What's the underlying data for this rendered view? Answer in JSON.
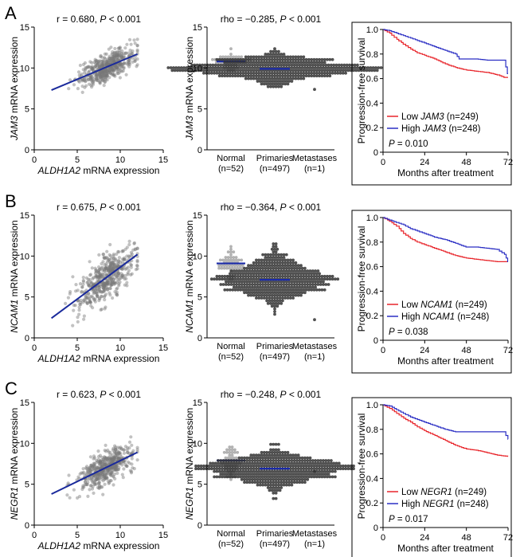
{
  "colors": {
    "low": "#e8242a",
    "high": "#2b2fc4",
    "fit": "#1a2a9c",
    "point": "#777777",
    "median": "#1a2aa8"
  },
  "rows": [
    {
      "letter": "A",
      "gene": "JAM3",
      "scatter": {
        "r_prefix": "r = 0.680, ",
        "p_italic": "P",
        "p_suffix": " < 0.001",
        "ylabel_italic": "JAM3",
        "ylabel_rest": " mRNA expression",
        "xlabel_italic": "ALDH1A2",
        "xlabel_rest": " mRNA expression"
      },
      "beeswarm": {
        "rho_prefix": "rho = −0.285, ",
        "p_italic": "P",
        "p_suffix": " < 0.001",
        "ylabel_italic": "JAM3",
        "ylabel_rest": " mRNA expression"
      },
      "km": {
        "low_prefix": "Low ",
        "low_gene": "JAM3",
        "low_n": " (n=249)",
        "high_prefix": "High ",
        "high_gene": "JAM3",
        "high_n": " (n=248)",
        "p_italic": "P",
        "p_text": " = 0.010"
      }
    },
    {
      "letter": "B",
      "gene": "NCAM1",
      "scatter": {
        "r_prefix": "r = 0.675, ",
        "p_italic": "P",
        "p_suffix": " < 0.001",
        "ylabel_italic": "NCAM1",
        "ylabel_rest": " mRNA expression",
        "xlabel_italic": "ALDH1A2",
        "xlabel_rest": " mRNA expression"
      },
      "beeswarm": {
        "rho_prefix": "rho = −0.364, ",
        "p_italic": "P",
        "p_suffix": " < 0.001",
        "ylabel_italic": "NCAM1",
        "ylabel_rest": " mRNA expression"
      },
      "km": {
        "low_prefix": "Low ",
        "low_gene": "NCAM1",
        "low_n": " (n=249)",
        "high_prefix": "High ",
        "high_gene": "NCAM1",
        "high_n": " (n=248)",
        "p_italic": "P",
        "p_text": " = 0.038"
      }
    },
    {
      "letter": "C",
      "gene": "NEGR1",
      "scatter": {
        "r_prefix": "r = 0.623, ",
        "p_italic": "P",
        "p_suffix": " < 0.001",
        "ylabel_italic": "NEGR1",
        "ylabel_rest": " mRNA expression",
        "xlabel_italic": "ALDH1A2",
        "xlabel_rest": " mRNA expression"
      },
      "beeswarm": {
        "rho_prefix": "rho = −0.248, ",
        "p_italic": "P",
        "p_suffix": " < 0.001",
        "ylabel_italic": "NEGR1",
        "ylabel_rest": " mRNA expression"
      },
      "km": {
        "low_prefix": "Low ",
        "low_gene": "NEGR1",
        "low_n": " (n=249)",
        "high_prefix": "High ",
        "high_gene": "NEGR1",
        "high_n": " (n=248)",
        "p_italic": "P",
        "p_text": " = 0.017"
      }
    }
  ],
  "chart_data": [
    {
      "type": "scatter",
      "panel": "A-scatter",
      "title": "r = 0.680, P < 0.001",
      "xlabel": "ALDH1A2 mRNA expression",
      "ylabel": "JAM3 mRNA expression",
      "xlim": [
        0,
        15
      ],
      "ylim": [
        0,
        15
      ],
      "xticks": [
        "0",
        "5",
        "10",
        "15"
      ],
      "yticks": [
        "0",
        "5",
        "10",
        "15"
      ],
      "fit_line": {
        "x": [
          2,
          12
        ],
        "y": [
          7.3,
          11.7
        ]
      },
      "point_cloud": {
        "n": 497,
        "x_mean": 8.4,
        "x_sd": 1.6,
        "x_min": 2,
        "x_max": 12,
        "slope": 0.44,
        "intercept": 6.42,
        "resid_sd": 0.8,
        "y_min": 6,
        "y_max": 13.5
      }
    },
    {
      "type": "beeswarm",
      "panel": "A-beeswarm",
      "title": "rho = −0.285, P < 0.001",
      "ylabel": "JAM3 mRNA expression",
      "ylim": [
        0,
        15
      ],
      "yticks": [
        "0",
        "5",
        "10",
        "15"
      ],
      "categories": [
        "Normal",
        "Primaries",
        "Metastases"
      ],
      "counts": [
        "(n=52)",
        "(n=497)",
        "(n=1)"
      ],
      "medians": [
        10.8,
        9.9,
        7.5
      ],
      "groups": [
        {
          "n": 52,
          "mean": 10.8,
          "sd": 0.65,
          "min": 9.2,
          "max": 13.2
        },
        {
          "n": 497,
          "mean": 9.9,
          "sd": 0.85,
          "min": 6.5,
          "max": 12.5
        },
        {
          "n": 1,
          "mean": 7.5,
          "sd": 0,
          "min": 7.5,
          "max": 7.5
        }
      ]
    },
    {
      "type": "line",
      "panel": "A-km",
      "xlabel": "Months after treatment",
      "ylabel": "Progression-free survival",
      "xlim": [
        0,
        72
      ],
      "ylim": [
        0,
        1.0
      ],
      "xticks": [
        "0",
        "24",
        "48",
        "72"
      ],
      "yticks": [
        "0",
        "0.2",
        "0.4",
        "0.6",
        "0.8",
        "1.0"
      ],
      "series": [
        {
          "name": "Low JAM3 (n=249)",
          "x": [
            0,
            4,
            8,
            12,
            16,
            20,
            24,
            30,
            36,
            42,
            48,
            54,
            60,
            66,
            70,
            72
          ],
          "y": [
            1.0,
            0.97,
            0.92,
            0.88,
            0.84,
            0.81,
            0.79,
            0.76,
            0.72,
            0.69,
            0.67,
            0.66,
            0.65,
            0.63,
            0.61,
            0.61
          ]
        },
        {
          "name": "High JAM3 (n=248)",
          "x": [
            0,
            4,
            8,
            12,
            16,
            20,
            24,
            30,
            36,
            42,
            44,
            48,
            54,
            60,
            66,
            70,
            72
          ],
          "y": [
            1.0,
            0.99,
            0.97,
            0.95,
            0.93,
            0.91,
            0.89,
            0.86,
            0.83,
            0.8,
            0.76,
            0.76,
            0.76,
            0.75,
            0.75,
            0.75,
            0.64
          ]
        }
      ]
    },
    {
      "type": "scatter",
      "panel": "B-scatter",
      "title": "r = 0.675, P < 0.001",
      "xlabel": "ALDH1A2 mRNA expression",
      "ylabel": "NCAM1 mRNA expression",
      "xlim": [
        0,
        15
      ],
      "ylim": [
        0,
        15
      ],
      "xticks": [
        "0",
        "5",
        "10",
        "15"
      ],
      "yticks": [
        "0",
        "5",
        "10",
        "15"
      ],
      "fit_line": {
        "x": [
          2,
          12
        ],
        "y": [
          2.4,
          10.2
        ]
      },
      "point_cloud": {
        "n": 497,
        "x_mean": 8.4,
        "x_sd": 1.6,
        "x_min": 2,
        "x_max": 12,
        "slope": 0.78,
        "intercept": 0.84,
        "resid_sd": 1.3,
        "y_min": 1.5,
        "y_max": 13
      }
    },
    {
      "type": "beeswarm",
      "panel": "B-beeswarm",
      "title": "rho = −0.364, P < 0.001",
      "ylabel": "NCAM1 mRNA expression",
      "ylim": [
        0,
        15
      ],
      "yticks": [
        "0",
        "5",
        "10",
        "15"
      ],
      "categories": [
        "Normal",
        "Primaries",
        "Metastases"
      ],
      "counts": [
        "(n=52)",
        "(n=497)",
        "(n=1)"
      ],
      "medians": [
        9.1,
        7.1,
        2.2
      ],
      "groups": [
        {
          "n": 52,
          "mean": 9.1,
          "sd": 1.0,
          "min": 6.8,
          "max": 12.0
        },
        {
          "n": 497,
          "mean": 7.1,
          "sd": 1.5,
          "min": 1.5,
          "max": 11.5
        },
        {
          "n": 1,
          "mean": 2.2,
          "sd": 0,
          "min": 2.2,
          "max": 2.2
        }
      ]
    },
    {
      "type": "line",
      "panel": "B-km",
      "xlabel": "Months after treatment",
      "ylabel": "Progression-free survival",
      "xlim": [
        0,
        72
      ],
      "ylim": [
        0,
        1.0
      ],
      "xticks": [
        "0",
        "24",
        "48",
        "72"
      ],
      "yticks": [
        "0",
        "0.2",
        "0.4",
        "0.6",
        "0.8",
        "1.0"
      ],
      "series": [
        {
          "name": "Low NCAM1 (n=249)",
          "x": [
            0,
            4,
            8,
            12,
            16,
            20,
            24,
            30,
            36,
            42,
            48,
            54,
            60,
            66,
            72
          ],
          "y": [
            1.0,
            0.97,
            0.93,
            0.87,
            0.83,
            0.8,
            0.78,
            0.75,
            0.72,
            0.69,
            0.67,
            0.66,
            0.65,
            0.64,
            0.64
          ]
        },
        {
          "name": "High NCAM1 (n=248)",
          "x": [
            0,
            4,
            8,
            12,
            16,
            20,
            24,
            30,
            36,
            42,
            48,
            54,
            60,
            66,
            70,
            72
          ],
          "y": [
            1.0,
            0.98,
            0.96,
            0.94,
            0.91,
            0.89,
            0.87,
            0.84,
            0.82,
            0.79,
            0.76,
            0.76,
            0.75,
            0.74,
            0.7,
            0.64
          ]
        }
      ]
    },
    {
      "type": "scatter",
      "panel": "C-scatter",
      "title": "r = 0.623, P < 0.001",
      "xlabel": "ALDH1A2 mRNA expression",
      "ylabel": "NEGR1 mRNA expression",
      "xlim": [
        0,
        15
      ],
      "ylim": [
        0,
        15
      ],
      "xticks": [
        "0",
        "5",
        "10",
        "15"
      ],
      "yticks": [
        "0",
        "5",
        "10",
        "15"
      ],
      "fit_line": {
        "x": [
          2,
          12
        ],
        "y": [
          3.8,
          8.9
        ]
      },
      "point_cloud": {
        "n": 497,
        "x_mean": 8.4,
        "x_sd": 1.6,
        "x_min": 2,
        "x_max": 12,
        "slope": 0.51,
        "intercept": 2.78,
        "resid_sd": 1.0,
        "y_min": 1.0,
        "y_max": 11
      }
    },
    {
      "type": "beeswarm",
      "panel": "C-beeswarm",
      "title": "rho = −0.248, P < 0.001",
      "ylabel": "NEGR1 mRNA expression",
      "ylim": [
        0,
        15
      ],
      "yticks": [
        "0",
        "5",
        "10",
        "15"
      ],
      "categories": [
        "Normal",
        "Primaries",
        "Metastases"
      ],
      "counts": [
        "(n=52)",
        "(n=497)",
        "(n=1)"
      ],
      "medians": [
        7.9,
        6.9,
        6.5
      ],
      "groups": [
        {
          "n": 52,
          "mean": 7.9,
          "sd": 1.0,
          "min": 5.5,
          "max": 11.0
        },
        {
          "n": 497,
          "mean": 6.9,
          "sd": 1.1,
          "min": 1.0,
          "max": 10.0
        },
        {
          "n": 1,
          "mean": 6.5,
          "sd": 0,
          "min": 6.5,
          "max": 6.5
        }
      ]
    },
    {
      "type": "line",
      "panel": "C-km",
      "xlabel": "Months after treatment",
      "ylabel": "Progression-free survival",
      "xlim": [
        0,
        72
      ],
      "ylim": [
        0,
        1.0
      ],
      "xticks": [
        "0",
        "24",
        "48",
        "72"
      ],
      "yticks": [
        "0",
        "0.2",
        "0.4",
        "0.6",
        "0.8",
        "1.0"
      ],
      "series": [
        {
          "name": "Low NEGR1 (n=249)",
          "x": [
            0,
            4,
            8,
            12,
            16,
            20,
            24,
            30,
            36,
            42,
            48,
            54,
            60,
            66,
            72
          ],
          "y": [
            1.0,
            0.97,
            0.93,
            0.89,
            0.86,
            0.82,
            0.79,
            0.75,
            0.71,
            0.67,
            0.64,
            0.63,
            0.61,
            0.59,
            0.58
          ]
        },
        {
          "name": "High NEGR1 (n=248)",
          "x": [
            0,
            4,
            8,
            12,
            16,
            20,
            24,
            30,
            36,
            42,
            48,
            54,
            60,
            66,
            70,
            72
          ],
          "y": [
            1.0,
            0.99,
            0.96,
            0.93,
            0.9,
            0.88,
            0.86,
            0.83,
            0.8,
            0.78,
            0.78,
            0.78,
            0.78,
            0.78,
            0.78,
            0.72
          ]
        }
      ]
    }
  ]
}
